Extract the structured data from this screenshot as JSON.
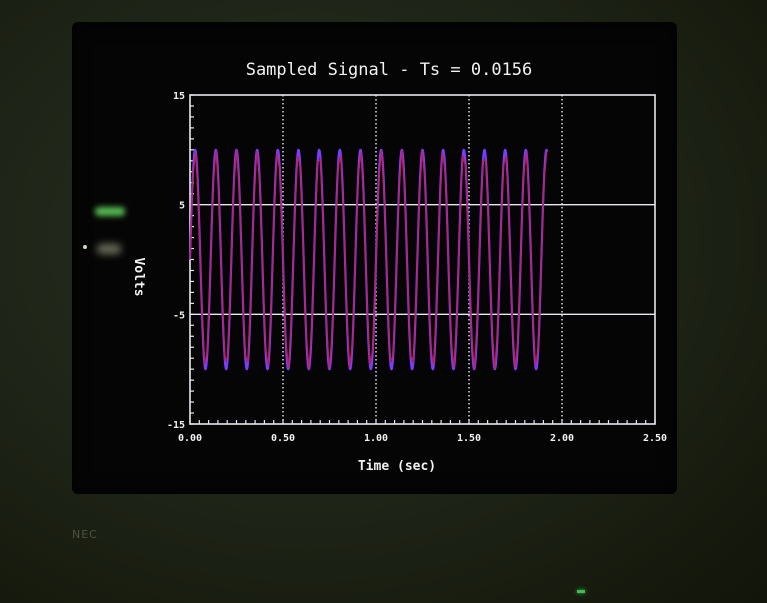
{
  "chart_data": {
    "type": "line",
    "title": "Sampled Signal - Ts = 0.0156",
    "xlabel": "Time (sec)",
    "ylabel": "Volts",
    "xlim": [
      0,
      2.5
    ],
    "ylim": [
      -15,
      15
    ],
    "x_ticks": [
      "0.00",
      "0.50",
      "1.00",
      "1.50",
      "2.00",
      "2.50"
    ],
    "y_ticks": [
      "15",
      "5",
      "-5",
      "-15"
    ],
    "grid": true,
    "signal": {
      "frequency_hz": 9,
      "amplitude": 10,
      "t_start": 0,
      "t_end": 1.92,
      "sample_period": 0.0156
    },
    "series": [
      {
        "color": "#7a3cff"
      },
      {
        "color": "#c81e46"
      }
    ]
  },
  "monitor": {
    "brand": "NEC"
  },
  "colors": {
    "grid": "#e8e8f0",
    "text": "#f2f2f2",
    "screen": "#050505"
  }
}
